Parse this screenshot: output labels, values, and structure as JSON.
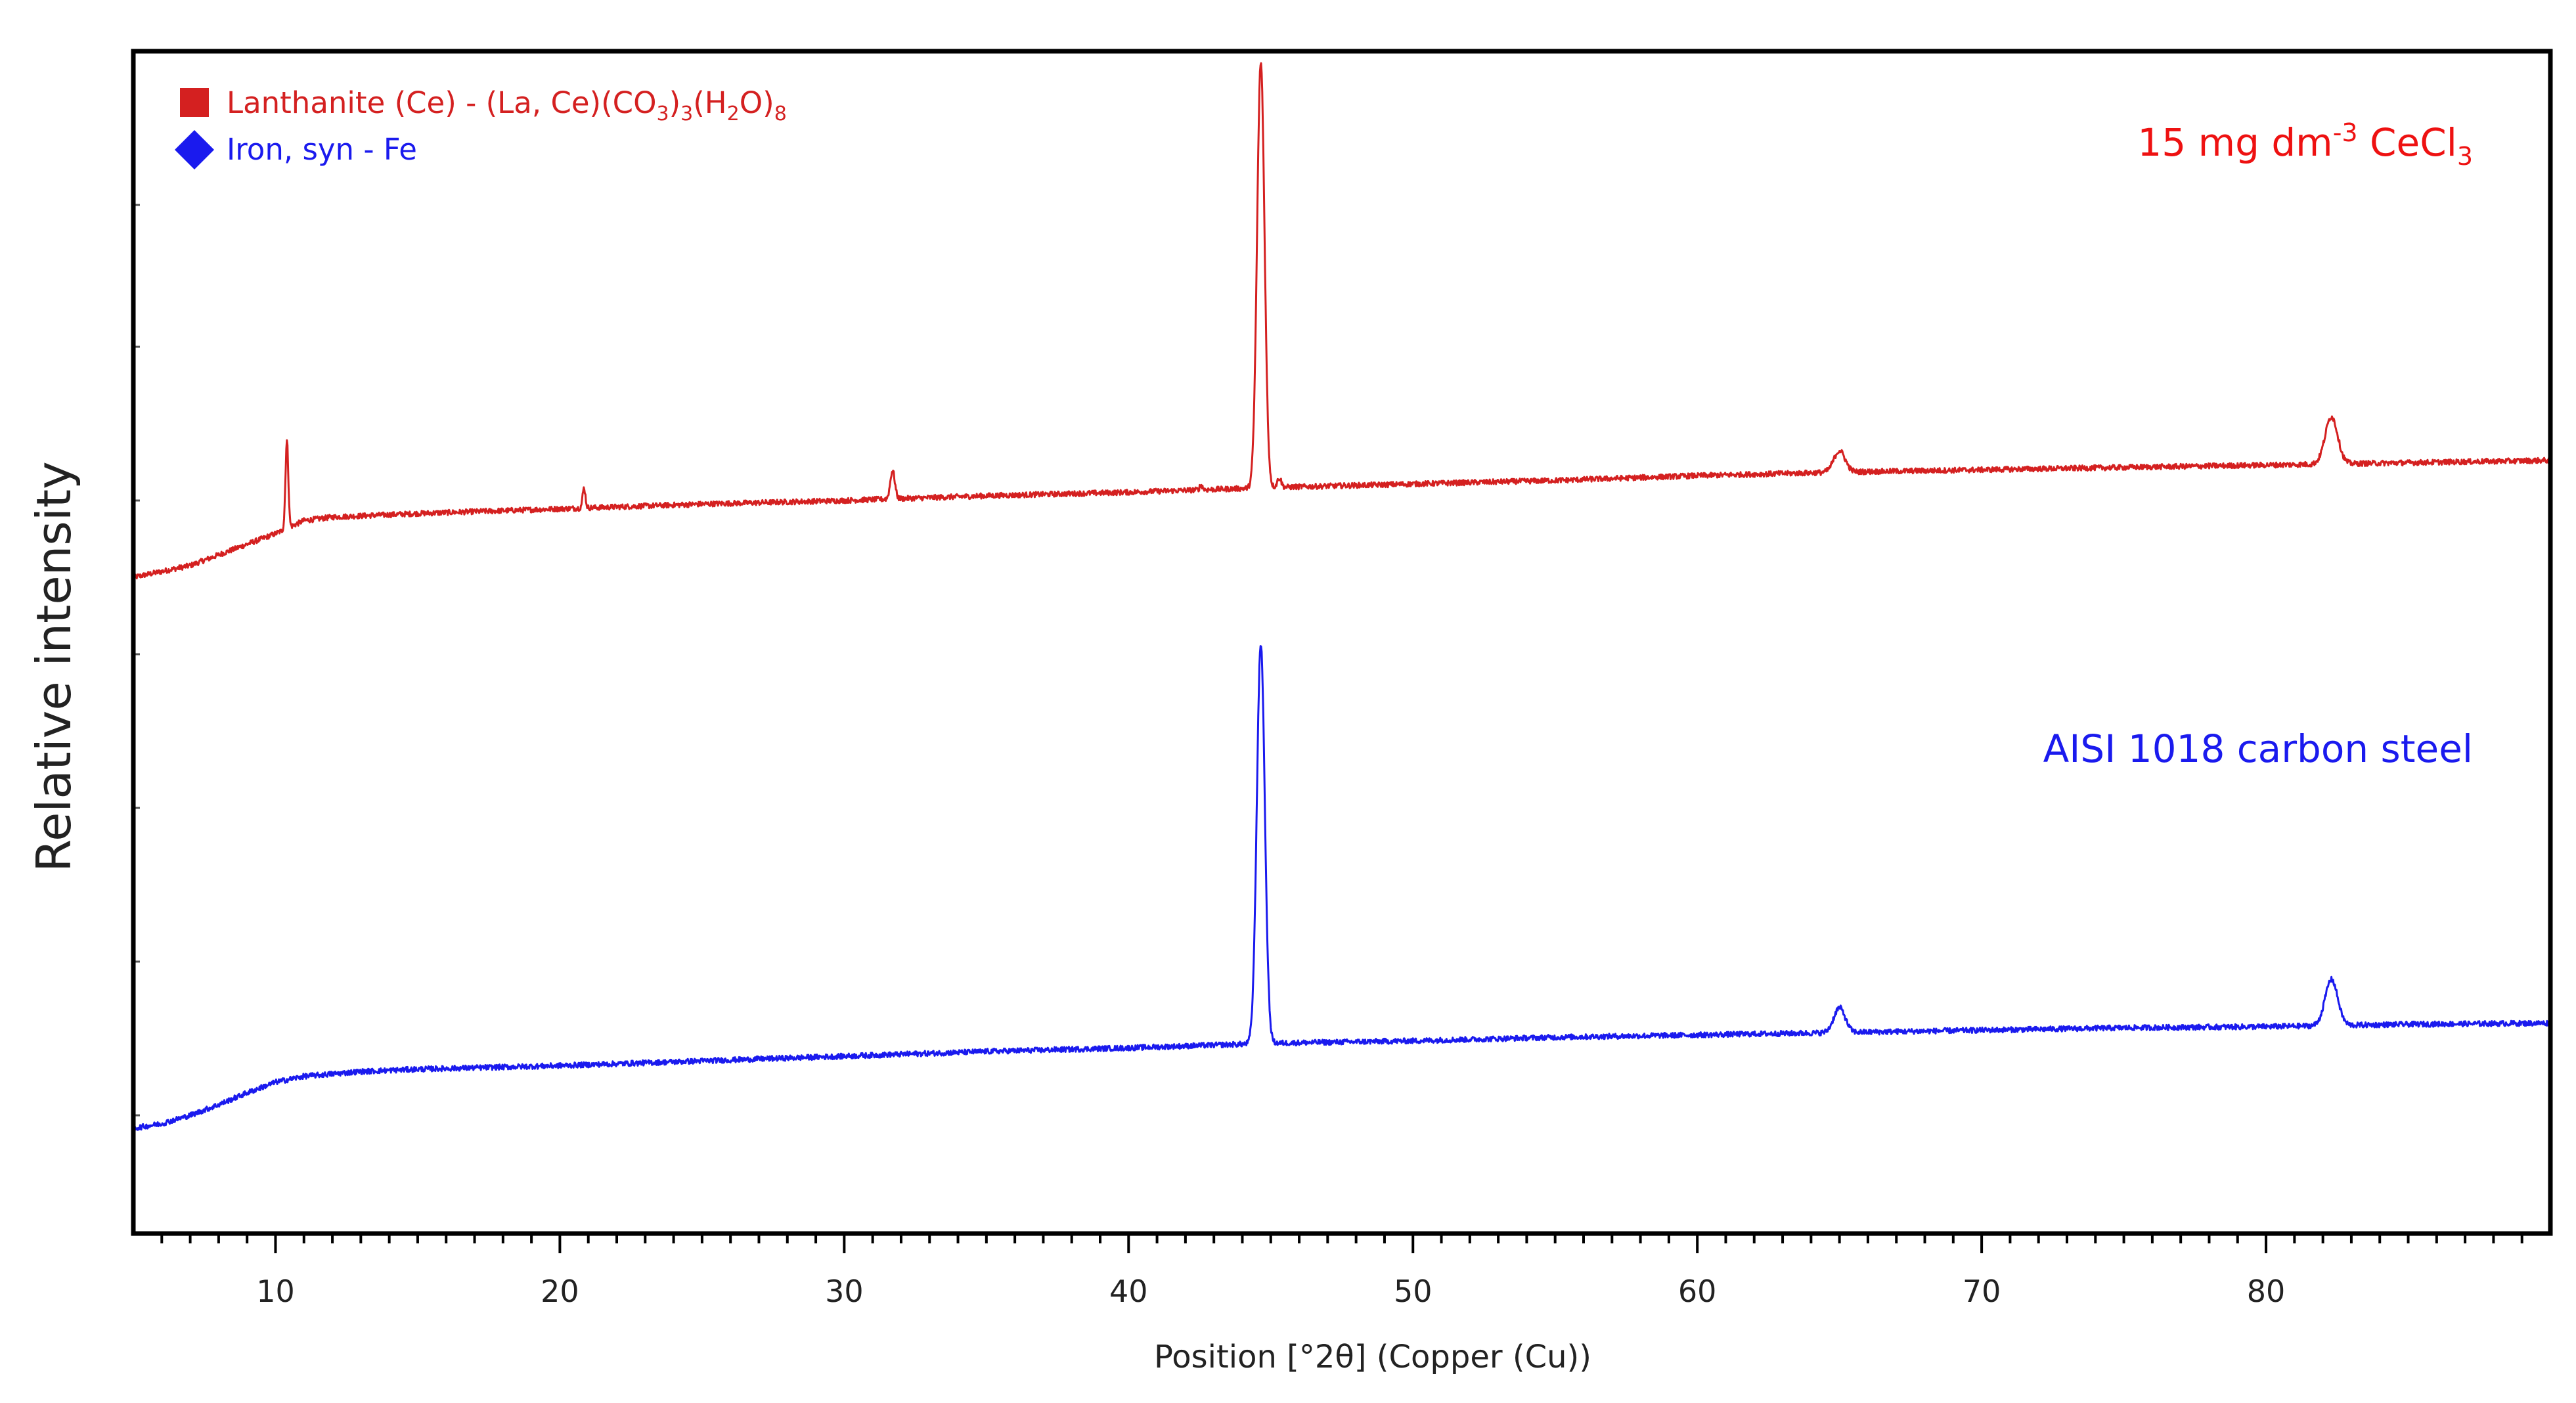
{
  "chart_data": {
    "type": "line",
    "title": "",
    "xlabel": "Position [°2θ] (Copper (Cu))",
    "ylabel": "Relative intensity",
    "xlim": [
      5,
      90
    ],
    "x_ticks": [
      10,
      20,
      30,
      40,
      50,
      60,
      70,
      80
    ],
    "x_tick_labels": [
      "10",
      "20",
      "30",
      "40",
      "50",
      "60",
      "70",
      "80"
    ],
    "ylim": [
      0,
      100
    ],
    "y_tick_labels_shown": false,
    "grid": false,
    "legend_position": "top-left",
    "legend": [
      {
        "marker": "square",
        "color": "#d42020",
        "label": {
          "base": "Lanthanite (Ce) - (La, Ce)(CO",
          "s1": "3",
          "mid1": ")",
          "s2": "3",
          "mid2": "(H",
          "s3": "2",
          "mid3": "O)",
          "s4": "8"
        }
      },
      {
        "marker": "diamond",
        "color": "#1a1aee",
        "label": "Iron, syn - Fe"
      }
    ],
    "annotations": [
      {
        "id": "cecl3",
        "color": "#ee1111",
        "pre": "15 mg dm",
        "sup": "-3",
        "mid": " CeCl",
        "sub": "3"
      },
      {
        "id": "steel",
        "color": "#1a1aee",
        "text": "AISI 1018 carbon steel"
      }
    ],
    "series": [
      {
        "id": "cecl3-sample",
        "color": "#d42020",
        "baseline": [
          [
            5,
            55.5
          ],
          [
            7,
            56.5
          ],
          [
            8,
            57.4
          ],
          [
            9,
            58.3
          ],
          [
            10,
            59.2
          ],
          [
            11,
            60.3
          ],
          [
            12,
            60.6
          ],
          [
            15,
            60.9
          ],
          [
            20,
            61.3
          ],
          [
            25,
            61.7
          ],
          [
            30,
            62.0
          ],
          [
            35,
            62.4
          ],
          [
            40,
            62.7
          ],
          [
            45,
            63.1
          ],
          [
            50,
            63.4
          ],
          [
            55,
            63.7
          ],
          [
            60,
            64.1
          ],
          [
            65,
            64.4
          ],
          [
            70,
            64.6
          ],
          [
            75,
            64.8
          ],
          [
            80,
            65.0
          ],
          [
            85,
            65.2
          ],
          [
            90,
            65.4
          ]
        ],
        "peaks": [
          {
            "x": 10.4,
            "height": 7.4,
            "width": 0.05
          },
          {
            "x": 20.85,
            "height": 1.7,
            "width": 0.05
          },
          {
            "x": 31.7,
            "height": 2.4,
            "width": 0.08
          },
          {
            "x": 42.55,
            "height": 0.4,
            "width": 0.05
          },
          {
            "x": 44.65,
            "height": 36.0,
            "width": 0.13
          },
          {
            "x": 45.3,
            "height": 0.8,
            "width": 0.07
          },
          {
            "x": 65.0,
            "height": 1.8,
            "width": 0.2
          },
          {
            "x": 82.3,
            "height": 4.0,
            "width": 0.22
          }
        ]
      },
      {
        "id": "aisi-1018",
        "color": "#1a1aee",
        "baseline": [
          [
            5,
            8.9
          ],
          [
            6,
            9.3
          ],
          [
            7,
            10.0
          ],
          [
            8,
            10.9
          ],
          [
            9,
            11.9
          ],
          [
            10,
            12.8
          ],
          [
            11,
            13.3
          ],
          [
            13,
            13.7
          ],
          [
            15,
            13.9
          ],
          [
            20,
            14.2
          ],
          [
            25,
            14.6
          ],
          [
            30,
            15.0
          ],
          [
            35,
            15.4
          ],
          [
            40,
            15.7
          ],
          [
            45,
            16.1
          ],
          [
            50,
            16.3
          ],
          [
            55,
            16.6
          ],
          [
            60,
            16.8
          ],
          [
            65,
            17.0
          ],
          [
            70,
            17.2
          ],
          [
            75,
            17.4
          ],
          [
            80,
            17.5
          ],
          [
            85,
            17.7
          ],
          [
            90,
            17.8
          ]
        ],
        "peaks": [
          {
            "x": 44.65,
            "height": 33.8,
            "width": 0.14
          },
          {
            "x": 65.0,
            "height": 2.1,
            "width": 0.2
          },
          {
            "x": 82.3,
            "height": 3.9,
            "width": 0.22
          }
        ]
      }
    ]
  }
}
